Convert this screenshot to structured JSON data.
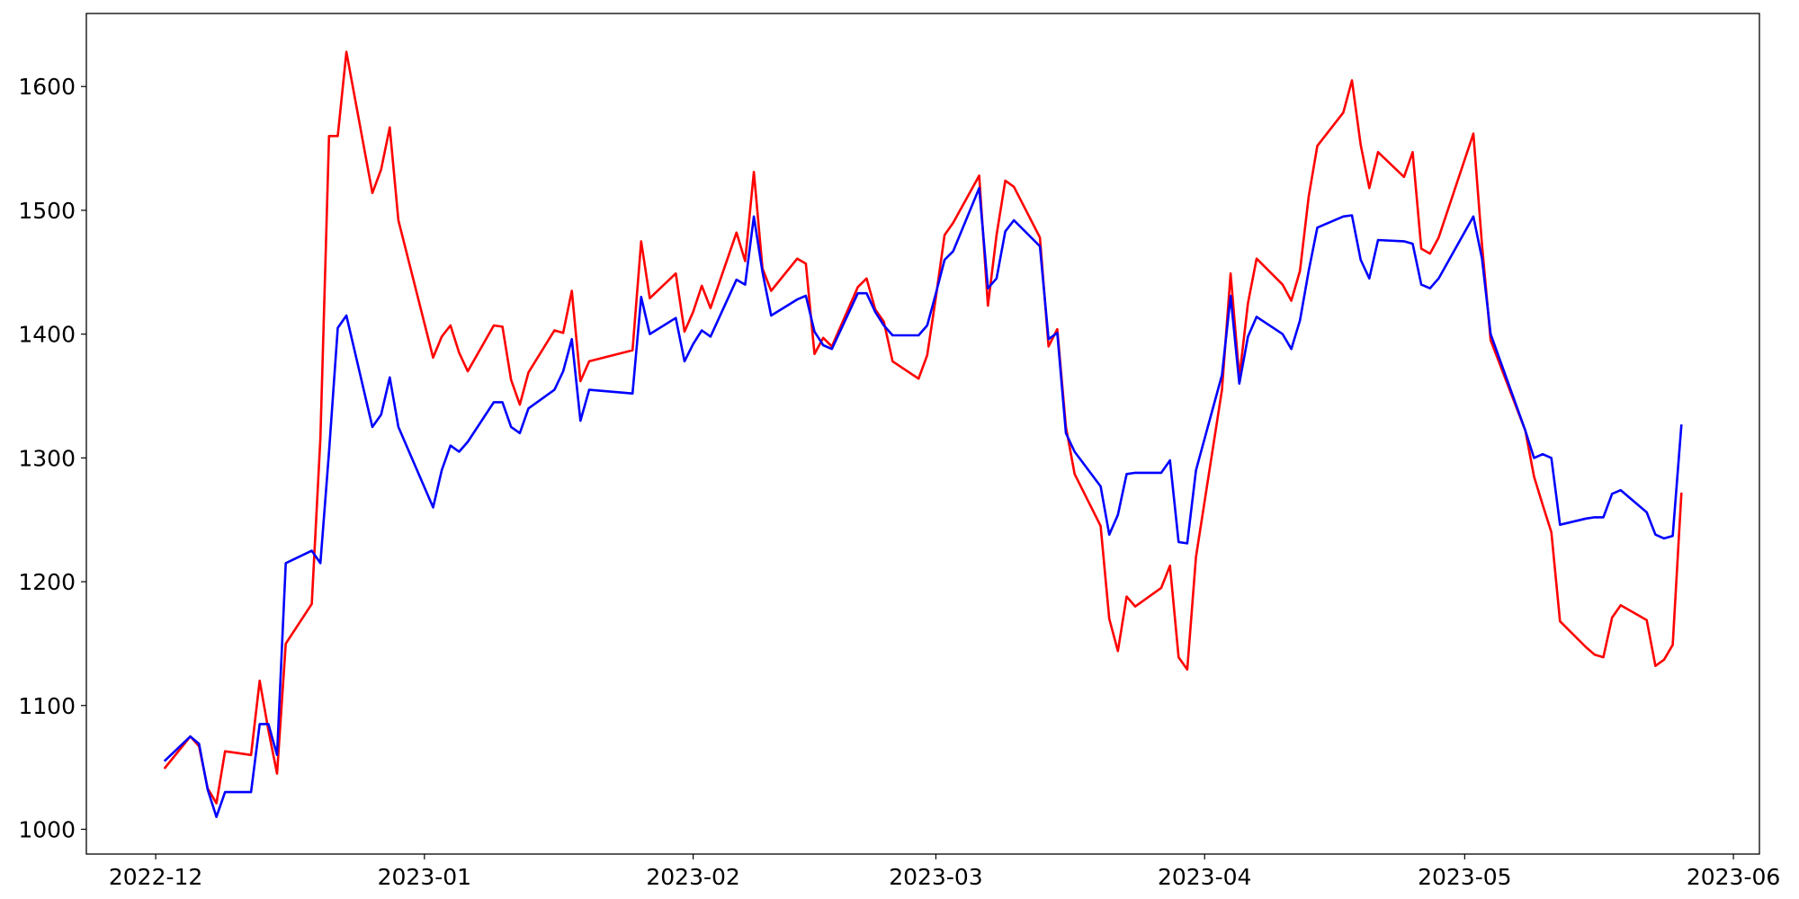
{
  "chart_data": {
    "type": "line",
    "x": [
      "2022-12-02",
      "2022-12-05",
      "2022-12-06",
      "2022-12-07",
      "2022-12-08",
      "2022-12-09",
      "2022-12-12",
      "2022-12-13",
      "2022-12-14",
      "2022-12-15",
      "2022-12-16",
      "2022-12-19",
      "2022-12-20",
      "2022-12-21",
      "2022-12-22",
      "2022-12-23",
      "2022-12-26",
      "2022-12-27",
      "2022-12-28",
      "2022-12-29",
      "2023-01-02",
      "2023-01-03",
      "2023-01-04",
      "2023-01-05",
      "2023-01-06",
      "2023-01-09",
      "2023-01-10",
      "2023-01-11",
      "2023-01-12",
      "2023-01-13",
      "2023-01-16",
      "2023-01-17",
      "2023-01-18",
      "2023-01-19",
      "2023-01-20",
      "2023-01-25",
      "2023-01-26",
      "2023-01-27",
      "2023-01-30",
      "2023-01-31",
      "2023-02-01",
      "2023-02-02",
      "2023-02-03",
      "2023-02-06",
      "2023-02-07",
      "2023-02-08",
      "2023-02-09",
      "2023-02-10",
      "2023-02-13",
      "2023-02-14",
      "2023-02-15",
      "2023-02-16",
      "2023-02-17",
      "2023-02-20",
      "2023-02-21",
      "2023-02-22",
      "2023-02-23",
      "2023-02-24",
      "2023-02-27",
      "2023-02-28",
      "2023-03-01",
      "2023-03-02",
      "2023-03-03",
      "2023-03-06",
      "2023-03-07",
      "2023-03-08",
      "2023-03-09",
      "2023-03-10",
      "2023-03-13",
      "2023-03-14",
      "2023-03-15",
      "2023-03-16",
      "2023-03-17",
      "2023-03-20",
      "2023-03-21",
      "2023-03-22",
      "2023-03-23",
      "2023-03-24",
      "2023-03-27",
      "2023-03-28",
      "2023-03-29",
      "2023-03-30",
      "2023-03-31",
      "2023-04-03",
      "2023-04-04",
      "2023-04-05",
      "2023-04-06",
      "2023-04-07",
      "2023-04-10",
      "2023-04-11",
      "2023-04-12",
      "2023-04-13",
      "2023-04-14",
      "2023-04-17",
      "2023-04-18",
      "2023-04-19",
      "2023-04-20",
      "2023-04-21",
      "2023-04-24",
      "2023-04-25",
      "2023-04-26",
      "2023-04-27",
      "2023-04-28",
      "2023-05-02",
      "2023-05-03",
      "2023-05-04",
      "2023-05-08",
      "2023-05-09",
      "2023-05-10",
      "2023-05-11",
      "2023-05-12",
      "2023-05-15",
      "2023-05-16",
      "2023-05-17",
      "2023-05-18",
      "2023-05-19",
      "2023-05-22",
      "2023-05-23",
      "2023-05-24",
      "2023-05-25",
      "2023-05-26"
    ],
    "series": [
      {
        "color": "#ff0000",
        "values": [
          1049,
          1075,
          1067,
          1033,
          1021,
          1063,
          1060,
          1120,
          1080,
          1045,
          1150,
          1182,
          1316,
          1560,
          1560,
          1628,
          1514,
          1533,
          1567,
          1492,
          1381,
          1398,
          1407,
          1385,
          1370,
          1407,
          1406,
          1363,
          1343,
          1369,
          1403,
          1401,
          1435,
          1362,
          1378,
          1387,
          1475,
          1429,
          1449,
          1402,
          1418,
          1439,
          1421,
          1482,
          1459,
          1531,
          1453,
          1435,
          1461,
          1457,
          1384,
          1397,
          1390,
          1438,
          1445,
          1420,
          1410,
          1378,
          1364,
          1383,
          1430,
          1480,
          1490,
          1528,
          1423,
          1480,
          1524,
          1519,
          1478,
          1390,
          1404,
          1325,
          1287,
          1245,
          1170,
          1144,
          1188,
          1180,
          1195,
          1213,
          1139,
          1129,
          1220,
          1355,
          1449,
          1365,
          1425,
          1461,
          1440,
          1427,
          1451,
          1511,
          1552,
          1579,
          1605,
          1553,
          1518,
          1547,
          1527,
          1547,
          1469,
          1465,
          1478,
          1562,
          1472,
          1395,
          1322,
          1285,
          1262,
          1240,
          1168,
          1147,
          1141,
          1139,
          1171,
          1181,
          1169,
          1132,
          1137,
          1149,
          1272
        ]
      },
      {
        "color": "#0000ff",
        "values": [
          1055,
          1075,
          1069,
          1032,
          1010,
          1030,
          1030,
          1085,
          1085,
          1060,
          1215,
          1225,
          1215,
          1305,
          1405,
          1415,
          1325,
          1335,
          1365,
          1325,
          1260,
          1290,
          1310,
          1305,
          1313,
          1345,
          1345,
          1325,
          1320,
          1340,
          1355,
          1370,
          1396,
          1330,
          1355,
          1352,
          1430,
          1400,
          1413,
          1378,
          1392,
          1403,
          1398,
          1444,
          1440,
          1495,
          1450,
          1415,
          1428,
          1431,
          1402,
          1391,
          1388,
          1433,
          1433,
          1418,
          1407,
          1399,
          1399,
          1407,
          1433,
          1460,
          1467,
          1518,
          1437,
          1445,
          1483,
          1492,
          1471,
          1396,
          1401,
          1320,
          1305,
          1277,
          1238,
          1254,
          1287,
          1288,
          1288,
          1298,
          1232,
          1231,
          1290,
          1367,
          1431,
          1360,
          1398,
          1414,
          1400,
          1388,
          1411,
          1451,
          1486,
          1495,
          1496,
          1460,
          1445,
          1476,
          1475,
          1473,
          1440,
          1437,
          1445,
          1495,
          1461,
          1400,
          1322,
          1300,
          1303,
          1300,
          1246,
          1251,
          1252,
          1252,
          1271,
          1274,
          1256,
          1238,
          1235,
          1237,
          1327
        ]
      }
    ],
    "xlim": [
      "2022-11-23",
      "2023-06-04"
    ],
    "xticks": [
      {
        "value": "2022-12-01",
        "label": "2022-12"
      },
      {
        "value": "2023-01-01",
        "label": "2023-01"
      },
      {
        "value": "2023-02-01",
        "label": "2023-02"
      },
      {
        "value": "2023-03-01",
        "label": "2023-03"
      },
      {
        "value": "2023-04-01",
        "label": "2023-04"
      },
      {
        "value": "2023-05-01",
        "label": "2023-05"
      },
      {
        "value": "2023-06-01",
        "label": "2023-06"
      }
    ],
    "ylim": [
      980,
      1659
    ],
    "yticks": [
      1000,
      1100,
      1200,
      1300,
      1400,
      1500,
      1600
    ],
    "grid": false
  }
}
